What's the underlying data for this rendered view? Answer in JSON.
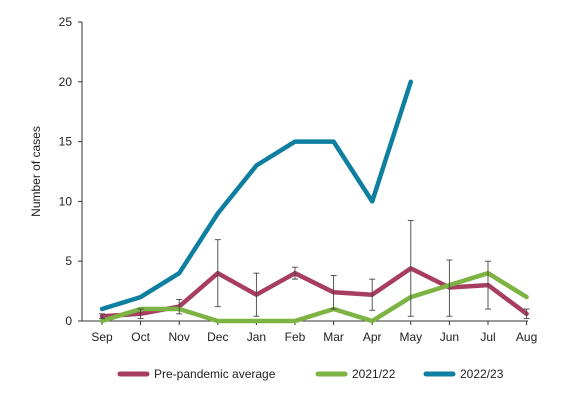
{
  "chart_data": {
    "type": "line",
    "title": "",
    "xlabel": "",
    "ylabel": "Number of cases",
    "ylim": [
      0,
      25
    ],
    "yticks": [
      "0",
      "5",
      "10",
      "15",
      "20",
      "25"
    ],
    "categories": [
      "Sep",
      "Oct",
      "Nov",
      "Dec",
      "Jan",
      "Feb",
      "Mar",
      "Apr",
      "May",
      "Jun",
      "Jul",
      "Aug"
    ],
    "grid": false,
    "legend_position": "bottom",
    "series": [
      {
        "name": "Pre-pandemic average",
        "color": "#a73d5f",
        "values": [
          0.4,
          0.6,
          1.2,
          4.0,
          2.2,
          4.0,
          2.4,
          2.2,
          4.4,
          2.8,
          3.0,
          0.6
        ],
        "error_low": [
          0.2,
          0.2,
          0.6,
          1.2,
          0.4,
          3.5,
          1.0,
          0.9,
          0.4,
          0.4,
          1.0,
          0.2
        ],
        "error_high": [
          0.6,
          1.0,
          1.8,
          6.8,
          4.0,
          4.5,
          3.8,
          3.5,
          8.4,
          5.1,
          5.0,
          1.0
        ]
      },
      {
        "name": "2021/22",
        "color": "#7cb342",
        "values": [
          0,
          1,
          1,
          0,
          0,
          0,
          1,
          0,
          2,
          3,
          4,
          2
        ]
      },
      {
        "name": "2022/23",
        "color": "#0f7fa1",
        "values": [
          1,
          2,
          4,
          9,
          13,
          15,
          15,
          10,
          20,
          null,
          null,
          null
        ]
      }
    ]
  }
}
